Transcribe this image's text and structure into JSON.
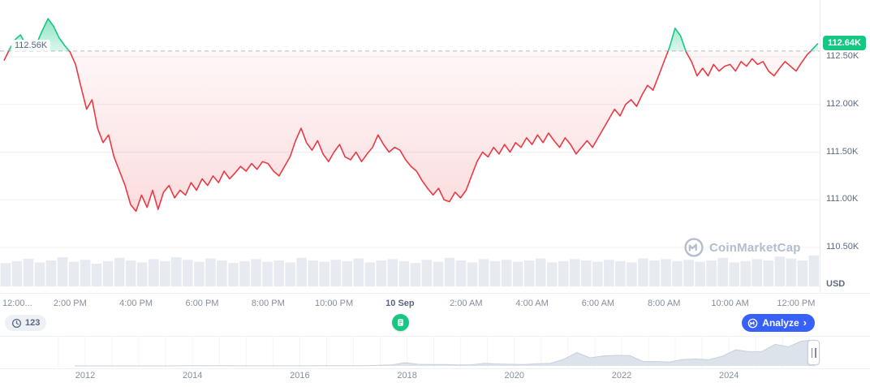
{
  "watermark": {
    "text": "CoinMarketCap"
  },
  "badges": {
    "annotations_count": "123",
    "analyze_label": "Analyze",
    "analyze_chevron": "›"
  },
  "chart_data": {
    "type": "line",
    "baseline": {
      "label": "112.56K",
      "value": 112.56
    },
    "current": {
      "label": "112.64K",
      "value": 112.64
    },
    "y_axis": {
      "unit": "USD",
      "tick_labels": [
        "112.50K",
        "112.00K",
        "111.50K",
        "111.00K",
        "110.50K"
      ],
      "tick_values": [
        112.5,
        112.0,
        111.5,
        111.0,
        110.5
      ],
      "range": [
        110.3,
        113.05
      ]
    },
    "x_axis": {
      "tick_labels": [
        "12:00...",
        "2:00 PM",
        "4:00 PM",
        "6:00 PM",
        "8:00 PM",
        "10:00 PM",
        "10 Sep",
        "2:00 AM",
        "4:00 AM",
        "6:00 AM",
        "8:00 AM",
        "10:00 AM",
        "12:00 PM"
      ],
      "date_label_index": 6,
      "points_per_tick": 12
    },
    "series": [
      {
        "name": "price",
        "interval_minutes": 10,
        "values": [
          112.46,
          112.58,
          112.68,
          112.73,
          112.62,
          112.58,
          112.65,
          112.78,
          112.9,
          112.82,
          112.7,
          112.62,
          112.55,
          112.42,
          112.18,
          111.95,
          112.05,
          111.75,
          111.6,
          111.68,
          111.45,
          111.3,
          111.15,
          110.95,
          110.88,
          111.05,
          110.92,
          111.1,
          110.9,
          111.08,
          111.15,
          111.02,
          111.1,
          111.05,
          111.18,
          111.1,
          111.22,
          111.15,
          111.25,
          111.18,
          111.3,
          111.22,
          111.28,
          111.35,
          111.3,
          111.38,
          111.32,
          111.4,
          111.38,
          111.3,
          111.25,
          111.35,
          111.45,
          111.62,
          111.75,
          111.6,
          111.52,
          111.62,
          111.48,
          111.4,
          111.5,
          111.58,
          111.45,
          111.42,
          111.5,
          111.4,
          111.48,
          111.55,
          111.68,
          111.58,
          111.5,
          111.55,
          111.52,
          111.42,
          111.35,
          111.3,
          111.2,
          111.12,
          111.05,
          111.12,
          111.0,
          110.98,
          111.08,
          111.02,
          111.1,
          111.25,
          111.4,
          111.5,
          111.45,
          111.55,
          111.48,
          111.58,
          111.5,
          111.6,
          111.55,
          111.65,
          111.58,
          111.68,
          111.6,
          111.7,
          111.62,
          111.55,
          111.65,
          111.58,
          111.48,
          111.55,
          111.62,
          111.55,
          111.65,
          111.75,
          111.85,
          111.95,
          111.88,
          112.0,
          112.05,
          111.98,
          112.1,
          112.2,
          112.15,
          112.3,
          112.45,
          112.6,
          112.8,
          112.72,
          112.55,
          112.45,
          112.3,
          112.38,
          112.3,
          112.42,
          112.35,
          112.4,
          112.42,
          112.35,
          112.45,
          112.4,
          112.48,
          112.42,
          112.45,
          112.35,
          112.3,
          112.38,
          112.45,
          112.4,
          112.35,
          112.44,
          112.52,
          112.58,
          112.64
        ]
      }
    ],
    "volume_bars": [
      0.72,
      0.78,
      0.85,
      0.74,
      0.8,
      0.9,
      0.76,
      0.82,
      0.7,
      0.78,
      0.88,
      0.8,
      0.74,
      0.84,
      0.78,
      0.9,
      0.82,
      0.76,
      0.86,
      0.8,
      0.72,
      0.78,
      0.84,
      0.76,
      0.8,
      0.74,
      0.88,
      0.8,
      0.76,
      0.82,
      0.78,
      0.86,
      0.74,
      0.8,
      0.84,
      0.78,
      0.72,
      0.82,
      0.76,
      0.88,
      0.8,
      0.74,
      0.84,
      0.78,
      0.82,
      0.76,
      0.8,
      0.86,
      0.74,
      0.78,
      0.84,
      0.8,
      0.76,
      0.82,
      0.78,
      0.74,
      0.86,
      0.8,
      0.84,
      0.78,
      0.82,
      0.76,
      0.8,
      0.88,
      0.74,
      0.78,
      0.84,
      0.8,
      0.92,
      0.86,
      0.8,
      0.95
    ],
    "colors": {
      "up": "#16c784",
      "down": "#ea3943",
      "grid": "#edf0f4",
      "volume": "#e7ebf1"
    }
  },
  "navigator": {
    "year_labels": [
      "2012",
      "2014",
      "2016",
      "2018",
      "2020",
      "2022",
      "2024"
    ],
    "start_year": 2011.8,
    "end_year": 2025.6,
    "values": [
      0.01,
      0.01,
      0.01,
      0.01,
      0.02,
      0.05,
      0.1,
      0.1,
      0.2,
      0.8,
      0.5,
      0.6,
      0.4,
      0.3,
      0.25,
      0.3,
      0.3,
      0.43,
      0.42,
      0.66,
      0.6,
      0.95,
      1.2,
      2.5,
      4.3,
      14,
      7,
      6.4,
      6.5,
      3.8,
      5,
      11,
      8.3,
      7.2,
      6.4,
      9.1,
      10.8,
      29,
      58,
      35,
      43,
      46,
      45,
      19,
      19,
      16.5,
      28,
      30,
      27,
      42,
      70,
      62,
      63,
      94,
      83,
      108,
      112.6
    ]
  }
}
